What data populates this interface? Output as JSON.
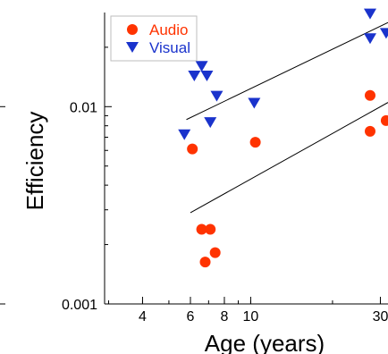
{
  "chart_data": {
    "type": "scatter",
    "xlabel": "Age (years)",
    "ylabel": "Efficiency",
    "x_scale": "log",
    "y_scale": "log",
    "xlim": [
      2.9,
      32
    ],
    "ylim": [
      0.001,
      0.03
    ],
    "x_ticks": [
      4,
      6,
      8,
      10,
      30
    ],
    "x_tick_labels": [
      "4",
      "6",
      "8",
      "10",
      "30"
    ],
    "y_ticks": [
      0.001,
      0.01
    ],
    "y_tick_labels": [
      "0.001",
      "0.01"
    ],
    "legend_position": "top-left",
    "series": [
      {
        "name": "Audio",
        "marker": "circle",
        "color": "#ff3300",
        "points": [
          {
            "x": 6.1,
            "y": 0.0061
          },
          {
            "x": 6.6,
            "y": 0.00239
          },
          {
            "x": 7.1,
            "y": 0.00239
          },
          {
            "x": 6.8,
            "y": 0.00163
          },
          {
            "x": 7.4,
            "y": 0.00182
          },
          {
            "x": 10.4,
            "y": 0.0066
          },
          {
            "x": 27.5,
            "y": 0.0114
          },
          {
            "x": 27.5,
            "y": 0.0075
          },
          {
            "x": 31.5,
            "y": 0.0085
          }
        ],
        "fit_line": {
          "x": [
            6.0,
            32
          ],
          "y": [
            0.0029,
            0.0105
          ]
        }
      },
      {
        "name": "Visual",
        "marker": "triangle-down",
        "color": "#1a33cc",
        "points": [
          {
            "x": 5.7,
            "y": 0.0072
          },
          {
            "x": 6.2,
            "y": 0.0143
          },
          {
            "x": 6.6,
            "y": 0.016
          },
          {
            "x": 6.9,
            "y": 0.0143
          },
          {
            "x": 7.1,
            "y": 0.0083
          },
          {
            "x": 7.5,
            "y": 0.0113
          },
          {
            "x": 10.3,
            "y": 0.0104
          },
          {
            "x": 27.5,
            "y": 0.0295
          },
          {
            "x": 27.5,
            "y": 0.0221
          },
          {
            "x": 31.5,
            "y": 0.0235
          }
        ],
        "fit_line": {
          "x": [
            5.8,
            32
          ],
          "y": [
            0.0086,
            0.0267
          ]
        }
      }
    ]
  }
}
